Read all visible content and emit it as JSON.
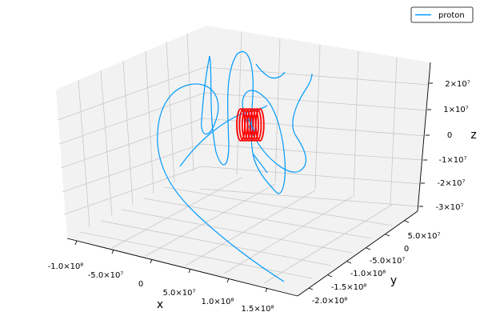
{
  "chart_data": {
    "type": "line",
    "title": "",
    "xlabel": "x",
    "ylabel": "y",
    "zlabel": "z",
    "grid": true,
    "legend_position": "top-right",
    "x_ticks": [
      "-1.0×10⁸",
      "-5.0×10⁷",
      "0",
      "5.0×10⁷",
      "1.0×10⁸",
      "1.5×10⁸"
    ],
    "y_ticks": [
      "-2.0×10⁸",
      "-1.5×10⁸",
      "-1.0×10⁸",
      "-5.0×10⁷",
      "0",
      "5.0×10⁷"
    ],
    "z_ticks": [
      "2×10⁷",
      "1×10⁷",
      "0",
      "-1×10⁷",
      "-2×10⁷",
      "-3×10⁷"
    ],
    "xlim": [
      -100000000,
      160000000
    ],
    "ylim": [
      -210000000,
      70000000
    ],
    "zlim": [
      -32000000,
      28000000
    ],
    "series": [
      {
        "name": "proton",
        "color": "#009AFA"
      }
    ],
    "coil": {
      "color": "#FF0000",
      "loops": 8
    }
  }
}
